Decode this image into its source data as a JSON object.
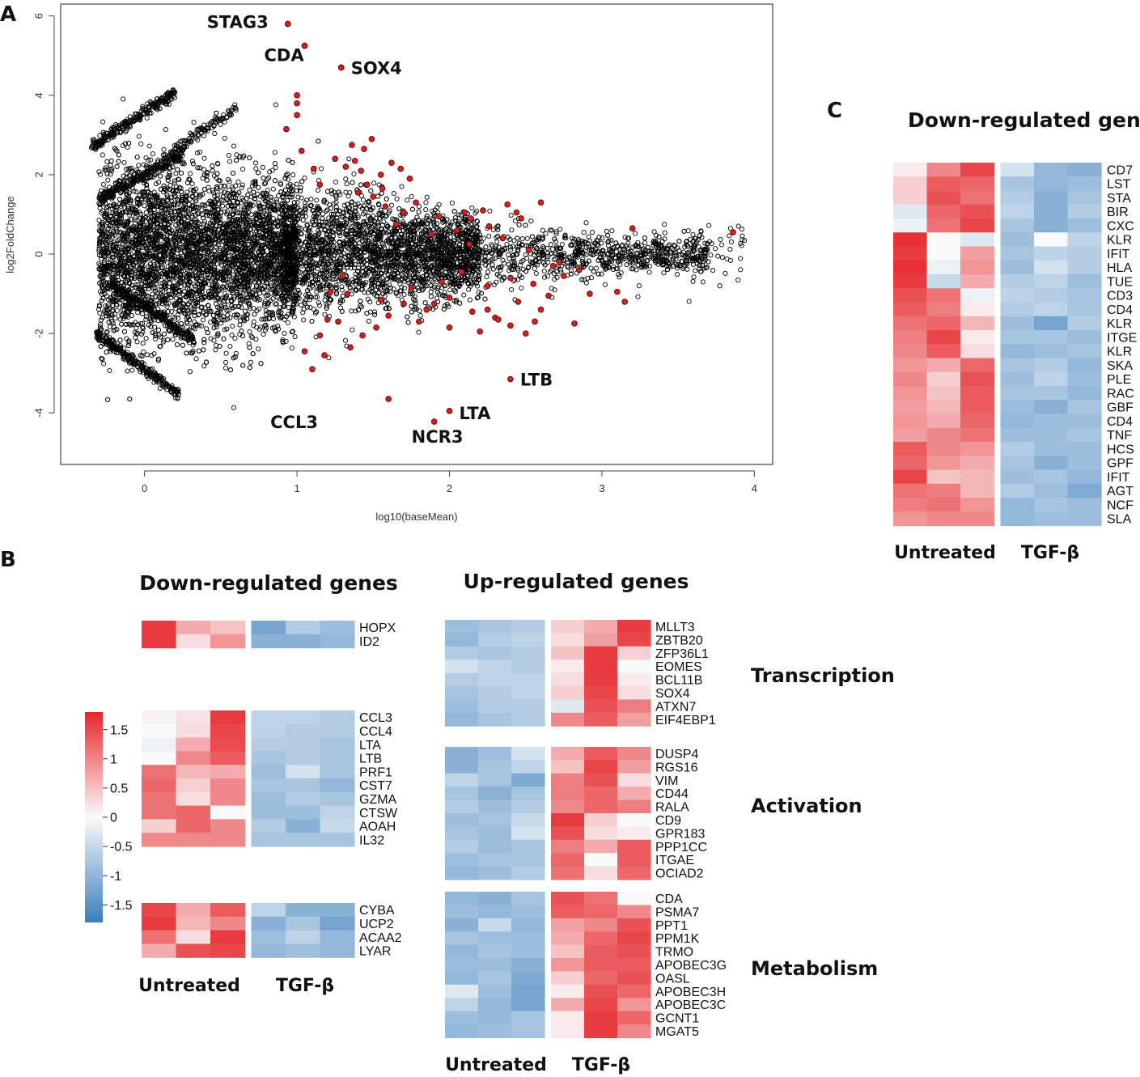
{
  "panels": {
    "a": "A",
    "b": "B",
    "c": "C"
  },
  "chart_data": [
    {
      "id": "ma_plot",
      "type": "scatter",
      "xlabel": "log10(baseMean)",
      "ylabel": "log2FoldChange",
      "xlim": [
        -0.55,
        4.12
      ],
      "ylim": [
        -5.3,
        6.3
      ],
      "xticks": [
        0,
        1,
        2,
        3,
        4
      ],
      "yticks": [
        -4,
        -2,
        0,
        2,
        4,
        6
      ],
      "background_cloud": {
        "marker": "open-circle",
        "color": "#000000",
        "approx_count": 9000,
        "description_x_range": [
          -0.35,
          3.95
        ],
        "y_spread_at_low_x": 2.5
      },
      "highlight_color": "#d22020",
      "labeled_points": [
        {
          "label": "STAG3",
          "x": 0.94,
          "y": 5.8
        },
        {
          "label": "CDA",
          "x": 1.05,
          "y": 5.25
        },
        {
          "label": "SOX4",
          "x": 1.29,
          "y": 4.7
        },
        {
          "label": "LTB",
          "x": 2.4,
          "y": -3.15
        },
        {
          "label": "CCL3",
          "x": 1.6,
          "y": -3.65
        },
        {
          "label": "LTA",
          "x": 2.0,
          "y": -3.95
        },
        {
          "label": "NCR3",
          "x": 1.9,
          "y": -4.22
        }
      ],
      "significant_points": [
        [
          0.94,
          5.8
        ],
        [
          1.05,
          5.25
        ],
        [
          1.29,
          4.7
        ],
        [
          1.0,
          4.0
        ],
        [
          1.0,
          3.8
        ],
        [
          1.0,
          3.5
        ],
        [
          0.93,
          3.15
        ],
        [
          1.36,
          2.75
        ],
        [
          1.38,
          2.35
        ],
        [
          1.44,
          2.65
        ],
        [
          1.49,
          2.9
        ],
        [
          1.42,
          2.1
        ],
        [
          1.32,
          2.2
        ],
        [
          1.25,
          2.4
        ],
        [
          1.46,
          1.75
        ],
        [
          1.5,
          1.45
        ],
        [
          1.56,
          1.65
        ],
        [
          1.62,
          2.3
        ],
        [
          1.68,
          2.15
        ],
        [
          1.74,
          1.9
        ],
        [
          1.11,
          2.15
        ],
        [
          1.15,
          1.75
        ],
        [
          1.03,
          2.6
        ],
        [
          1.4,
          1.55
        ],
        [
          1.55,
          2.0
        ],
        [
          1.58,
          1.2
        ],
        [
          1.7,
          1.05
        ],
        [
          1.78,
          1.3
        ],
        [
          1.93,
          0.95
        ],
        [
          2.1,
          1.05
        ],
        [
          2.22,
          1.1
        ],
        [
          2.38,
          1.25
        ],
        [
          2.47,
          0.9
        ],
        [
          2.6,
          1.3
        ],
        [
          2.05,
          0.6
        ],
        [
          2.14,
          0.9
        ],
        [
          2.26,
          0.7
        ],
        [
          2.44,
          1.05
        ],
        [
          1.33,
          -1.0
        ],
        [
          1.55,
          -1.15
        ],
        [
          1.7,
          -1.25
        ],
        [
          1.85,
          -1.4
        ],
        [
          2.0,
          -1.1
        ],
        [
          2.15,
          -1.45
        ],
        [
          2.3,
          -1.6
        ],
        [
          2.45,
          -1.2
        ],
        [
          2.55,
          -0.75
        ],
        [
          2.65,
          -1.05
        ],
        [
          2.75,
          -0.55
        ],
        [
          2.85,
          -0.4
        ],
        [
          2.92,
          -1.0
        ],
        [
          3.1,
          -0.95
        ],
        [
          3.15,
          -1.2
        ],
        [
          3.2,
          0.65
        ],
        [
          3.86,
          0.55
        ],
        [
          2.2,
          -1.95
        ],
        [
          2.32,
          -1.65
        ],
        [
          2.4,
          -1.8
        ],
        [
          1.05,
          -2.45
        ],
        [
          1.1,
          -2.9
        ],
        [
          1.15,
          -2.05
        ],
        [
          1.2,
          -1.65
        ],
        [
          1.27,
          -1.7
        ],
        [
          1.43,
          -2.05
        ],
        [
          1.6,
          -1.55
        ],
        [
          1.8,
          -1.7
        ],
        [
          1.9,
          -1.25
        ],
        [
          2.0,
          -1.85
        ],
        [
          2.25,
          -1.4
        ],
        [
          2.5,
          -2.0
        ],
        [
          2.6,
          -1.4
        ],
        [
          2.82,
          -1.75
        ],
        [
          2.25,
          -0.8
        ],
        [
          2.4,
          -0.6
        ],
        [
          2.56,
          -1.7
        ],
        [
          1.75,
          -0.85
        ],
        [
          1.3,
          -0.55
        ],
        [
          1.95,
          -0.7
        ],
        [
          2.08,
          -0.45
        ],
        [
          2.68,
          -0.3
        ],
        [
          1.65,
          0.75
        ],
        [
          1.88,
          0.5
        ],
        [
          2.35,
          0.4
        ],
        [
          2.52,
          0.1
        ],
        [
          2.72,
          -0.2
        ],
        [
          1.18,
          -2.55
        ],
        [
          1.35,
          -2.35
        ],
        [
          1.52,
          -1.85
        ],
        [
          1.22,
          -0.95
        ],
        [
          2.13,
          0.25
        ]
      ]
    },
    {
      "id": "heatmap_b",
      "type": "heatmap",
      "title": "Down-regulated genes",
      "title_up": "Up-regulated genes",
      "groups": [
        "Untreated",
        "TGF-β"
      ],
      "colormap": "blue-white-red",
      "value_range": [
        -1.8,
        1.8
      ],
      "legend_ticks": [
        1.5,
        1,
        0.5,
        0,
        -0.5,
        -1,
        -1.5
      ],
      "legend_labels": [
        "1.5",
        "1",
        "0.5",
        "0",
        "-0.5",
        "-1",
        "-1.5"
      ],
      "down_blocks": [
        {
          "genes": [
            "HOPX",
            "ID2"
          ],
          "values": [
            [
              1.6,
              0.6,
              0.4,
              -1.2,
              -0.6,
              -0.8
            ],
            [
              1.6,
              0.2,
              0.8,
              -1.0,
              -1.0,
              -0.9
            ]
          ]
        },
        {
          "genes": [
            "CCL3",
            "CCL4",
            "LTA",
            "LTB",
            "PRF1",
            "CST7",
            "GZMA",
            "CTSW",
            "AOAH",
            "IL32"
          ],
          "values": [
            [
              0.05,
              0.15,
              1.6,
              -0.5,
              -0.5,
              -0.6
            ],
            [
              0.0,
              0.2,
              1.5,
              -0.5,
              -0.6,
              -0.6
            ],
            [
              -0.1,
              0.6,
              1.45,
              -0.6,
              -0.6,
              -0.7
            ],
            [
              0.0,
              0.9,
              1.3,
              -0.7,
              -0.6,
              -0.7
            ],
            [
              1.1,
              0.5,
              0.6,
              -0.8,
              -0.3,
              -0.7
            ],
            [
              1.2,
              0.3,
              0.9,
              -0.7,
              -0.7,
              -0.9
            ],
            [
              1.1,
              0.2,
              0.9,
              -0.8,
              -0.6,
              -0.7
            ],
            [
              1.1,
              1.2,
              0.0,
              -0.8,
              -0.8,
              -0.5
            ],
            [
              0.3,
              1.2,
              0.9,
              -0.6,
              -1.0,
              -0.4
            ],
            [
              0.9,
              0.9,
              0.9,
              -0.7,
              -0.7,
              -0.7
            ]
          ]
        },
        {
          "genes": [
            "CYBA",
            "UCP2",
            "ACAA2",
            "LYAR"
          ],
          "values": [
            [
              1.5,
              0.6,
              1.3,
              -0.5,
              -1.0,
              -1.0
            ],
            [
              1.6,
              0.5,
              0.9,
              -1.0,
              -0.7,
              -1.2
            ],
            [
              1.1,
              0.2,
              1.6,
              -0.8,
              -0.5,
              -0.9
            ],
            [
              0.6,
              1.4,
              1.5,
              -0.9,
              -0.8,
              -0.9
            ]
          ]
        }
      ],
      "up_blocks": [
        {
          "category": "Transcription",
          "genes": [
            "MLLT3",
            "ZBTB20",
            "ZFP36L1",
            "EOMES",
            "BCL11B",
            "SOX4",
            "ATXN7",
            "EIF4EBP1"
          ],
          "values": [
            [
              -0.8,
              -0.7,
              -0.6,
              0.3,
              0.6,
              1.6
            ],
            [
              -0.9,
              -0.6,
              -0.5,
              0.2,
              0.7,
              1.5
            ],
            [
              -0.6,
              -0.7,
              -0.6,
              0.4,
              1.6,
              0.3
            ],
            [
              -0.3,
              -0.5,
              -0.6,
              0.1,
              1.6,
              0.0
            ],
            [
              -0.6,
              -0.5,
              -0.5,
              0.2,
              1.6,
              0.1
            ],
            [
              -0.7,
              -0.6,
              -0.5,
              0.3,
              1.5,
              0.2
            ],
            [
              -0.8,
              -0.6,
              -0.6,
              -0.2,
              1.4,
              1.0
            ],
            [
              -0.9,
              -0.7,
              -0.6,
              0.9,
              1.3,
              0.7
            ]
          ]
        },
        {
          "category": "Activation",
          "genes": [
            "DUSP4",
            "RGS16",
            "VIM",
            "CD44",
            "RALA",
            "CD9",
            "GPR183",
            "PPP1CC",
            "ITGAE",
            "OCIAD2"
          ],
          "values": [
            [
              -1.0,
              -0.8,
              -0.3,
              0.6,
              1.3,
              0.9
            ],
            [
              -1.0,
              -0.7,
              -0.5,
              0.4,
              1.5,
              0.7
            ],
            [
              -0.5,
              -0.7,
              -1.1,
              1.0,
              1.4,
              0.2
            ],
            [
              -0.7,
              -1.0,
              -0.7,
              1.0,
              1.2,
              0.6
            ],
            [
              -0.6,
              -0.8,
              -0.6,
              0.9,
              1.2,
              1.0
            ],
            [
              -0.8,
              -0.7,
              -0.4,
              1.6,
              0.3,
              0.0
            ],
            [
              -0.7,
              -0.8,
              -0.3,
              1.4,
              0.2,
              0.1
            ],
            [
              -0.6,
              -0.8,
              -0.7,
              1.0,
              0.6,
              1.3
            ],
            [
              -0.8,
              -0.7,
              -0.7,
              1.2,
              0.0,
              1.3
            ],
            [
              -0.9,
              -0.8,
              -0.6,
              1.1,
              0.2,
              1.2
            ]
          ]
        },
        {
          "category": "Metabolism",
          "genes": [
            "CDA",
            "PSMA7",
            "PPT1",
            "PPM1K",
            "TRMO",
            "APOBEC3G",
            "OASL",
            "APOBEC3H",
            "APOBEC3C",
            "GCNT1",
            "MGAT5"
          ],
          "values": [
            [
              -0.9,
              -1.0,
              -0.7,
              1.4,
              1.1,
              0.0
            ],
            [
              -0.8,
              -0.9,
              -0.8,
              1.3,
              1.2,
              0.9
            ],
            [
              -1.0,
              -0.4,
              -0.9,
              0.7,
              0.9,
              1.4
            ],
            [
              -0.7,
              -0.8,
              -0.8,
              0.6,
              1.2,
              1.5
            ],
            [
              -0.9,
              -0.7,
              -0.8,
              0.4,
              1.3,
              1.4
            ],
            [
              -0.8,
              -0.8,
              -1.0,
              0.8,
              1.3,
              1.3
            ],
            [
              -0.9,
              -0.7,
              -1.1,
              0.3,
              1.2,
              1.4
            ],
            [
              -0.2,
              -0.8,
              -1.2,
              0.1,
              1.4,
              1.2
            ],
            [
              -0.5,
              -0.9,
              -1.2,
              0.6,
              1.5,
              0.8
            ],
            [
              -0.8,
              -0.9,
              -0.7,
              0.1,
              1.6,
              1.2
            ],
            [
              -0.9,
              -0.8,
              -0.7,
              0.1,
              1.6,
              0.9
            ]
          ]
        }
      ]
    },
    {
      "id": "heatmap_c",
      "type": "heatmap",
      "title": "Down-regulated gen",
      "groups": [
        "Untreated",
        "TGF-β"
      ],
      "genes": [
        "CD7",
        "LST",
        "STA",
        "BIR",
        "CXC",
        "KLR",
        "IFIT",
        "HLA",
        "TUE",
        "CD3",
        "CD4",
        "KLR",
        "ITGE",
        "KLR",
        "SKA",
        "PLE",
        "RAC",
        "GBF",
        "CD4",
        "TNF",
        "HCS",
        "GPF",
        "IFIT",
        "AGT",
        "NCF",
        "SLA"
      ],
      "values": [
        [
          0.1,
          0.9,
          1.5,
          -0.3,
          -0.9,
          -1.0
        ],
        [
          0.3,
          1.3,
          1.2,
          -0.7,
          -0.9,
          -0.8
        ],
        [
          0.3,
          1.4,
          1.1,
          -0.6,
          -1.0,
          -0.7
        ],
        [
          -0.2,
          1.2,
          1.4,
          -0.5,
          -1.0,
          -0.6
        ],
        [
          -0.1,
          1.1,
          1.5,
          -0.7,
          -1.0,
          -0.8
        ],
        [
          1.7,
          0.0,
          -0.2,
          -0.8,
          0.0,
          -0.5
        ],
        [
          1.6,
          0.0,
          0.7,
          -0.7,
          -0.5,
          -0.6
        ],
        [
          1.7,
          -0.1,
          0.8,
          -0.8,
          -0.3,
          -0.6
        ],
        [
          1.6,
          -0.4,
          0.6,
          -0.6,
          -0.5,
          -0.8
        ],
        [
          1.4,
          1.1,
          -0.1,
          -0.5,
          -0.6,
          -0.7
        ],
        [
          1.3,
          1.0,
          0.1,
          -0.6,
          -0.5,
          -0.7
        ],
        [
          1.1,
          1.2,
          0.5,
          -0.8,
          -1.2,
          -0.6
        ],
        [
          1.0,
          1.5,
          0.1,
          -0.7,
          -0.7,
          -0.8
        ],
        [
          0.9,
          1.3,
          0.2,
          -0.9,
          -0.8,
          -0.7
        ],
        [
          0.8,
          0.6,
          1.2,
          -0.7,
          -0.6,
          -0.9
        ],
        [
          0.9,
          0.3,
          1.4,
          -0.8,
          -0.5,
          -0.8
        ],
        [
          0.8,
          0.4,
          1.3,
          -0.7,
          -0.7,
          -0.9
        ],
        [
          0.7,
          0.5,
          1.3,
          -0.8,
          -1.0,
          -0.7
        ],
        [
          0.8,
          0.6,
          1.2,
          -0.9,
          -0.8,
          -0.8
        ],
        [
          0.7,
          0.9,
          1.1,
          -0.8,
          -0.8,
          -0.7
        ],
        [
          1.3,
          0.9,
          0.8,
          -0.6,
          -0.8,
          -0.8
        ],
        [
          1.2,
          0.8,
          0.6,
          -0.7,
          -1.0,
          -0.8
        ],
        [
          1.5,
          0.4,
          0.5,
          -0.8,
          -0.7,
          -0.9
        ],
        [
          1.1,
          1.0,
          0.5,
          -0.6,
          -0.8,
          -1.1
        ],
        [
          1.0,
          1.1,
          0.8,
          -0.9,
          -0.7,
          -0.8
        ],
        [
          0.8,
          0.9,
          0.9,
          -0.9,
          -0.8,
          -0.8
        ]
      ]
    }
  ]
}
